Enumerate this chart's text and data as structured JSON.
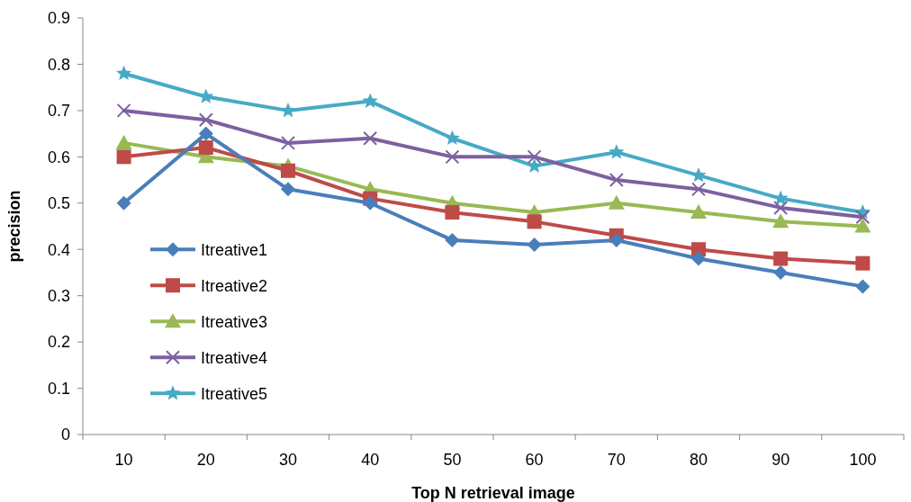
{
  "chart_data": {
    "type": "line",
    "xlabel": "Top N retrieval image",
    "ylabel": "precision",
    "categories": [
      "10",
      "20",
      "30",
      "40",
      "50",
      "60",
      "70",
      "80",
      "90",
      "100"
    ],
    "ylim": [
      0,
      0.9
    ],
    "yticks": [
      0,
      0.1,
      0.2,
      0.3,
      0.4,
      0.5,
      0.6,
      0.7,
      0.8,
      0.9
    ],
    "grid": false,
    "legend": "left",
    "series": [
      {
        "name": "Itreative1",
        "color": "#4a7ebb",
        "marker": "diamond",
        "values": [
          0.5,
          0.65,
          0.53,
          0.5,
          0.42,
          0.41,
          0.42,
          0.38,
          0.35,
          0.32
        ]
      },
      {
        "name": "Itreative2",
        "color": "#be4b48",
        "marker": "square",
        "values": [
          0.6,
          0.62,
          0.57,
          0.51,
          0.48,
          0.46,
          0.43,
          0.4,
          0.38,
          0.37
        ]
      },
      {
        "name": "Itreative3",
        "color": "#98b954",
        "marker": "triangle",
        "values": [
          0.63,
          0.6,
          0.58,
          0.53,
          0.5,
          0.48,
          0.5,
          0.48,
          0.46,
          0.45
        ]
      },
      {
        "name": "Itreative4",
        "color": "#7d60a0",
        "marker": "cross",
        "values": [
          0.7,
          0.68,
          0.63,
          0.64,
          0.6,
          0.6,
          0.55,
          0.53,
          0.49,
          0.47
        ]
      },
      {
        "name": "Itreative5",
        "color": "#46aac5",
        "marker": "star",
        "values": [
          0.78,
          0.73,
          0.7,
          0.72,
          0.64,
          0.58,
          0.61,
          0.56,
          0.51,
          0.48
        ]
      }
    ]
  }
}
